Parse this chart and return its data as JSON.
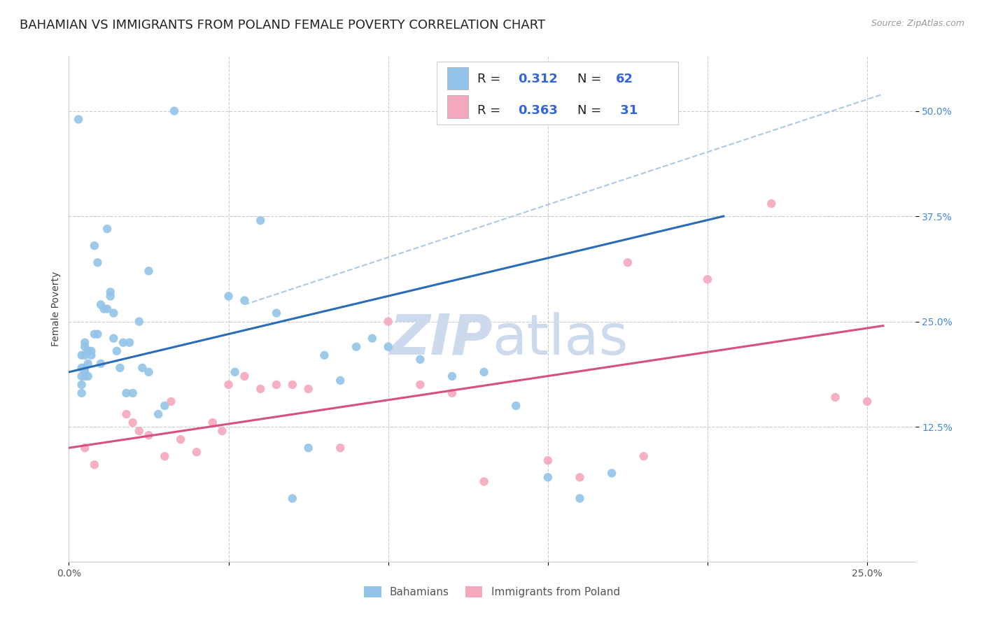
{
  "title": "BAHAMIAN VS IMMIGRANTS FROM POLAND FEMALE POVERTY CORRELATION CHART",
  "source": "Source: ZipAtlas.com",
  "ylabel": "Female Poverty",
  "xlim": [
    0.0,
    0.265
  ],
  "ylim": [
    -0.035,
    0.565
  ],
  "ytick_positions": [
    0.125,
    0.25,
    0.375,
    0.5
  ],
  "ytick_labels": [
    "12.5%",
    "25.0%",
    "37.5%",
    "50.0%"
  ],
  "bahamian_color": "#93c4e8",
  "poland_color": "#f4a8bc",
  "blue_line_color": "#2b6cb8",
  "pink_line_color": "#d94f7e",
  "dashed_line_color": "#aac8e8",
  "bahamian_label": "Bahamians",
  "poland_label": "Immigrants from Poland",
  "bahamian_scatter_x": [
    0.003,
    0.033,
    0.004,
    0.004,
    0.004,
    0.004,
    0.004,
    0.005,
    0.005,
    0.005,
    0.005,
    0.005,
    0.005,
    0.006,
    0.006,
    0.006,
    0.007,
    0.007,
    0.008,
    0.008,
    0.009,
    0.009,
    0.01,
    0.01,
    0.011,
    0.012,
    0.012,
    0.013,
    0.013,
    0.014,
    0.014,
    0.015,
    0.016,
    0.017,
    0.018,
    0.019,
    0.02,
    0.022,
    0.023,
    0.025,
    0.025,
    0.028,
    0.03,
    0.05,
    0.052,
    0.055,
    0.06,
    0.065,
    0.07,
    0.08,
    0.09,
    0.1,
    0.11,
    0.12,
    0.13,
    0.14,
    0.15,
    0.16,
    0.17,
    0.075,
    0.085,
    0.095
  ],
  "bahamian_scatter_y": [
    0.49,
    0.5,
    0.195,
    0.21,
    0.185,
    0.175,
    0.165,
    0.22,
    0.21,
    0.225,
    0.19,
    0.185,
    0.195,
    0.215,
    0.2,
    0.185,
    0.215,
    0.21,
    0.34,
    0.235,
    0.32,
    0.235,
    0.27,
    0.2,
    0.265,
    0.36,
    0.265,
    0.285,
    0.28,
    0.26,
    0.23,
    0.215,
    0.195,
    0.225,
    0.165,
    0.225,
    0.165,
    0.25,
    0.195,
    0.31,
    0.19,
    0.14,
    0.15,
    0.28,
    0.19,
    0.275,
    0.37,
    0.26,
    0.04,
    0.21,
    0.22,
    0.22,
    0.205,
    0.185,
    0.19,
    0.15,
    0.065,
    0.04,
    0.07,
    0.1,
    0.18,
    0.23
  ],
  "poland_scatter_x": [
    0.005,
    0.008,
    0.018,
    0.02,
    0.022,
    0.025,
    0.03,
    0.032,
    0.035,
    0.04,
    0.045,
    0.048,
    0.05,
    0.055,
    0.06,
    0.065,
    0.07,
    0.075,
    0.1,
    0.11,
    0.15,
    0.16,
    0.18,
    0.2,
    0.22,
    0.24,
    0.085,
    0.12,
    0.13,
    0.175,
    0.25
  ],
  "poland_scatter_y": [
    0.1,
    0.08,
    0.14,
    0.13,
    0.12,
    0.115,
    0.09,
    0.155,
    0.11,
    0.095,
    0.13,
    0.12,
    0.175,
    0.185,
    0.17,
    0.175,
    0.175,
    0.17,
    0.25,
    0.175,
    0.085,
    0.065,
    0.09,
    0.3,
    0.39,
    0.16,
    0.1,
    0.165,
    0.06,
    0.32,
    0.155
  ],
  "blue_trend_x": [
    0.0,
    0.205
  ],
  "blue_trend_y": [
    0.19,
    0.375
  ],
  "pink_trend_x": [
    0.0,
    0.255
  ],
  "pink_trend_y": [
    0.1,
    0.245
  ],
  "dashed_trend_x": [
    0.055,
    0.255
  ],
  "dashed_trend_y": [
    0.27,
    0.52
  ],
  "background_color": "#ffffff",
  "grid_color": "#cccccc",
  "title_fontsize": 13,
  "axis_label_fontsize": 10,
  "tick_fontsize": 10,
  "legend_fontsize": 14,
  "watermark_color": "#cddaee",
  "watermark_fontsize": 58
}
